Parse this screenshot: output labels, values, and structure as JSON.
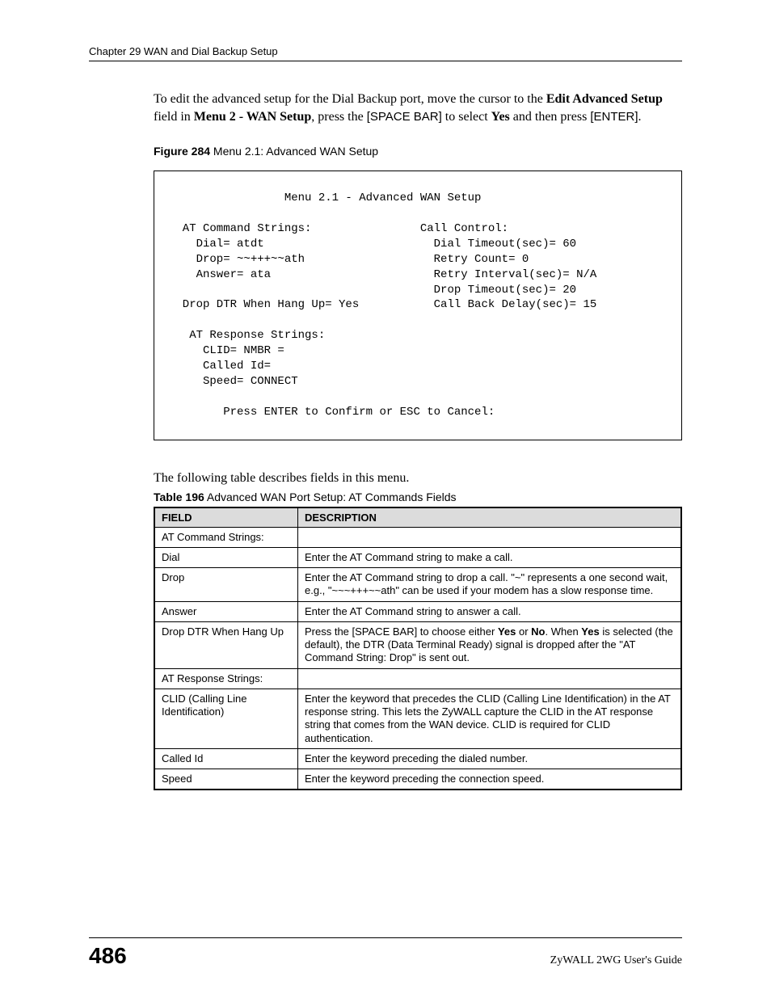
{
  "header": {
    "chapter_line": "Chapter 29 WAN and Dial Backup Setup"
  },
  "intro": {
    "prefix": "To edit the advanced setup for the Dial Backup port, move the cursor to the ",
    "bold1": "Edit Advanced Setup",
    "mid1": " field in ",
    "bold2": "Menu 2 - WAN Setup",
    "mid2": ", press the ",
    "sans1": "[SPACE BAR]",
    "mid3": " to select ",
    "bold3": "Yes",
    "mid4": " and then press ",
    "sans2": "[ENTER]",
    "suffix": "."
  },
  "figure": {
    "label": "Figure 284",
    "title": "   Menu 2.1: Advanced WAN Setup"
  },
  "terminal": {
    "text": "                 Menu 2.1 - Advanced WAN Setup\n\n  AT Command Strings:                Call Control:\n    Dial= atdt                         Dial Timeout(sec)= 60\n    Drop= ~~+++~~ath                   Retry Count= 0\n    Answer= ata                        Retry Interval(sec)= N/A\n                                       Drop Timeout(sec)= 20\n  Drop DTR When Hang Up= Yes           Call Back Delay(sec)= 15\n\n   AT Response Strings:\n     CLID= NMBR =\n     Called Id=\n     Speed= CONNECT\n\n        Press ENTER to Confirm or ESC to Cancel:"
  },
  "followup": "The following table describes fields in this menu.",
  "table_caption": {
    "label": "Table 196",
    "title": "   Advanced WAN Port Setup: AT Commands Fields"
  },
  "table": {
    "header_field": "Field",
    "header_desc": "Description",
    "rows": [
      {
        "field": "AT Command Strings:",
        "desc": ""
      },
      {
        "field": "Dial",
        "desc": "Enter the AT Command string to make a call."
      },
      {
        "field": "Drop",
        "desc": "Enter the AT Command string to drop a call. \"~\" represents a one second wait, e.g., \"~~~+++~~ath\" can be used if your modem has a slow response time."
      },
      {
        "field": "Answer",
        "desc": "Enter the AT Command string to answer a call."
      },
      {
        "field": "Drop DTR When Hang Up",
        "desc_html": true,
        "desc_pre": "Press the [SPACE BAR] to choose either ",
        "bold1": "Yes",
        "mid1": " or ",
        "bold2": "No",
        "mid2": ". When ",
        "bold3": "Yes",
        "desc_post": " is selected (the default), the DTR (Data Terminal Ready) signal is dropped after the \"AT Command String: Drop\" is sent out."
      },
      {
        "field": "AT Response Strings:",
        "desc": ""
      },
      {
        "field": "CLID (Calling Line Identification)",
        "desc": "Enter the keyword that precedes the CLID (Calling Line Identification) in the AT response string. This lets the ZyWALL capture the CLID in the AT response string that comes from the WAN device. CLID is required for CLID authentication."
      },
      {
        "field": "Called Id",
        "desc": "Enter the keyword preceding the dialed number."
      },
      {
        "field": "Speed",
        "desc": "Enter the keyword preceding the connection speed."
      }
    ]
  },
  "footer": {
    "page_number": "486",
    "guide": "ZyWALL 2WG User's Guide"
  },
  "colors": {
    "table_header_bg": "#dcdcdc",
    "border": "#000000",
    "background": "#ffffff",
    "text": "#000000"
  }
}
